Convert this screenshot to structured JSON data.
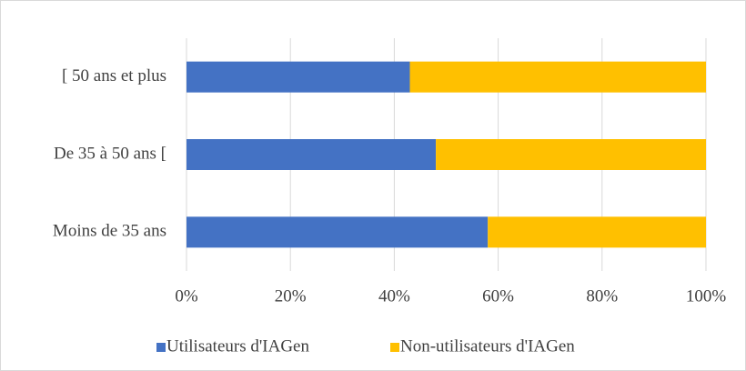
{
  "chart_data": {
    "type": "stacked-barh",
    "categories": [
      "[ 50 ans et plus",
      "De 35 à 50 ans [",
      "Moins de 35 ans"
    ],
    "series": [
      {
        "name": "Utilisateurs d'IAGen",
        "color": "#4472c4",
        "values": [
          43,
          48,
          58
        ]
      },
      {
        "name": "Non-utilisateurs d'IAGen",
        "color": "#ffc000",
        "values": [
          57,
          52,
          42
        ]
      }
    ],
    "xlim": [
      0,
      100
    ],
    "xticks": [
      {
        "value": 0,
        "label": "0%"
      },
      {
        "value": 20,
        "label": "20%"
      },
      {
        "value": 40,
        "label": "40%"
      },
      {
        "value": 60,
        "label": "60%"
      },
      {
        "value": 80,
        "label": "80%"
      },
      {
        "value": 100,
        "label": "100%"
      }
    ],
    "grid": true,
    "legend": "bottom"
  }
}
